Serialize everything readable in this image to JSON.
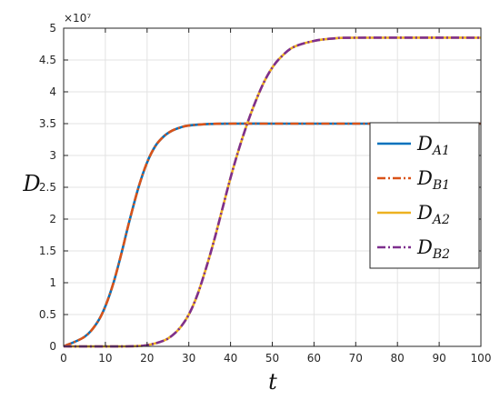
{
  "chart_data": {
    "type": "line",
    "xlabel": "t",
    "ylabel": "D",
    "xlim": [
      0,
      100
    ],
    "ylim": [
      0,
      50000000
    ],
    "xticks": [
      0,
      10,
      20,
      30,
      40,
      50,
      60,
      70,
      80,
      90,
      100
    ],
    "yticks": [
      0,
      5000000,
      10000000,
      15000000,
      20000000,
      25000000,
      30000000,
      35000000,
      40000000,
      45000000,
      50000000
    ],
    "xtick_labels": [
      "0",
      "10",
      "20",
      "30",
      "40",
      "50",
      "60",
      "70",
      "80",
      "90",
      "100"
    ],
    "ytick_labels": [
      "0",
      "0.5",
      "1",
      "1.5",
      "2",
      "2.5",
      "3",
      "3.5",
      "4",
      "4.5",
      "5"
    ],
    "y_exponent_label": "×10⁷",
    "grid": true,
    "legend_position": "right",
    "series": [
      {
        "name": "D_A1",
        "legend_main": "D",
        "legend_sub": "A1",
        "color": "#0072BD",
        "style": "solid",
        "x": [
          0,
          5,
          8,
          10,
          12,
          14,
          15,
          16,
          18,
          20,
          22,
          24,
          26,
          28,
          30,
          35,
          40,
          50,
          60,
          100
        ],
        "y": [
          0,
          1500000,
          3700000,
          6300000,
          10100000,
          15000000,
          17700000,
          20300000,
          25100000,
          28900000,
          31500000,
          33000000,
          33900000,
          34400000,
          34700000,
          34950000,
          35000000,
          35000000,
          35000000,
          35000000
        ]
      },
      {
        "name": "D_B1",
        "legend_main": "D",
        "legend_sub": "B1",
        "color": "#D95319",
        "style": "dashdot",
        "x": [
          0,
          5,
          8,
          10,
          12,
          14,
          15,
          16,
          18,
          20,
          22,
          24,
          26,
          28,
          30,
          35,
          40,
          50,
          60,
          100
        ],
        "y": [
          0,
          1500000,
          3700000,
          6300000,
          10100000,
          15000000,
          17700000,
          20300000,
          25100000,
          28900000,
          31500000,
          33000000,
          33900000,
          34400000,
          34700000,
          34950000,
          35000000,
          35000000,
          35000000,
          35000000
        ]
      },
      {
        "name": "D_A2",
        "legend_main": "D",
        "legend_sub": "A2",
        "color": "#EDB120",
        "style": "solid",
        "x": [
          0,
          15,
          20,
          24,
          26,
          28,
          30,
          32,
          34,
          36,
          38,
          40,
          42,
          44,
          46,
          48,
          50,
          52,
          55,
          60,
          65,
          70,
          100
        ],
        "y": [
          0,
          0,
          200000,
          900000,
          1700000,
          3000000,
          5000000,
          8000000,
          12000000,
          16500000,
          21500000,
          26500000,
          31000000,
          35000000,
          38500000,
          41500000,
          43800000,
          45400000,
          47000000,
          48000000,
          48400000,
          48500000,
          48500000
        ]
      },
      {
        "name": "D_B2",
        "legend_main": "D",
        "legend_sub": "B2",
        "color": "#7E2F8E",
        "style": "dashdot",
        "x": [
          0,
          15,
          20,
          24,
          26,
          28,
          30,
          32,
          34,
          36,
          38,
          40,
          42,
          44,
          46,
          48,
          50,
          52,
          55,
          60,
          65,
          70,
          100
        ],
        "y": [
          0,
          0,
          200000,
          900000,
          1700000,
          3000000,
          5000000,
          8000000,
          12000000,
          16500000,
          21500000,
          26500000,
          31000000,
          35000000,
          38500000,
          41500000,
          43800000,
          45400000,
          47000000,
          48000000,
          48400000,
          48500000,
          48500000
        ]
      }
    ]
  }
}
